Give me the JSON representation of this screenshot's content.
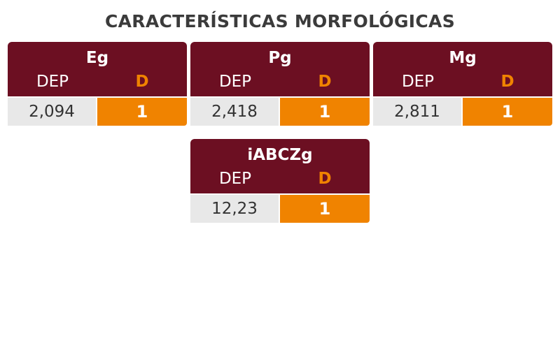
{
  "title": "CARACTERÍSTICAS MORFOLÓGICAS",
  "cards": [
    {
      "label": "Eg",
      "left_header": "DEP",
      "right_header": "D",
      "left_value": "2,094",
      "right_value": "1"
    },
    {
      "label": "Pg",
      "left_header": "DEP",
      "right_header": "D",
      "left_value": "2,418",
      "right_value": "1"
    },
    {
      "label": "Mg",
      "left_header": "DEP",
      "right_header": "D",
      "left_value": "2,811",
      "right_value": "1"
    },
    {
      "label": "iABCZg",
      "left_header": "DEP",
      "right_header": "D",
      "left_value": "12,23",
      "right_value": "1"
    }
  ]
}
